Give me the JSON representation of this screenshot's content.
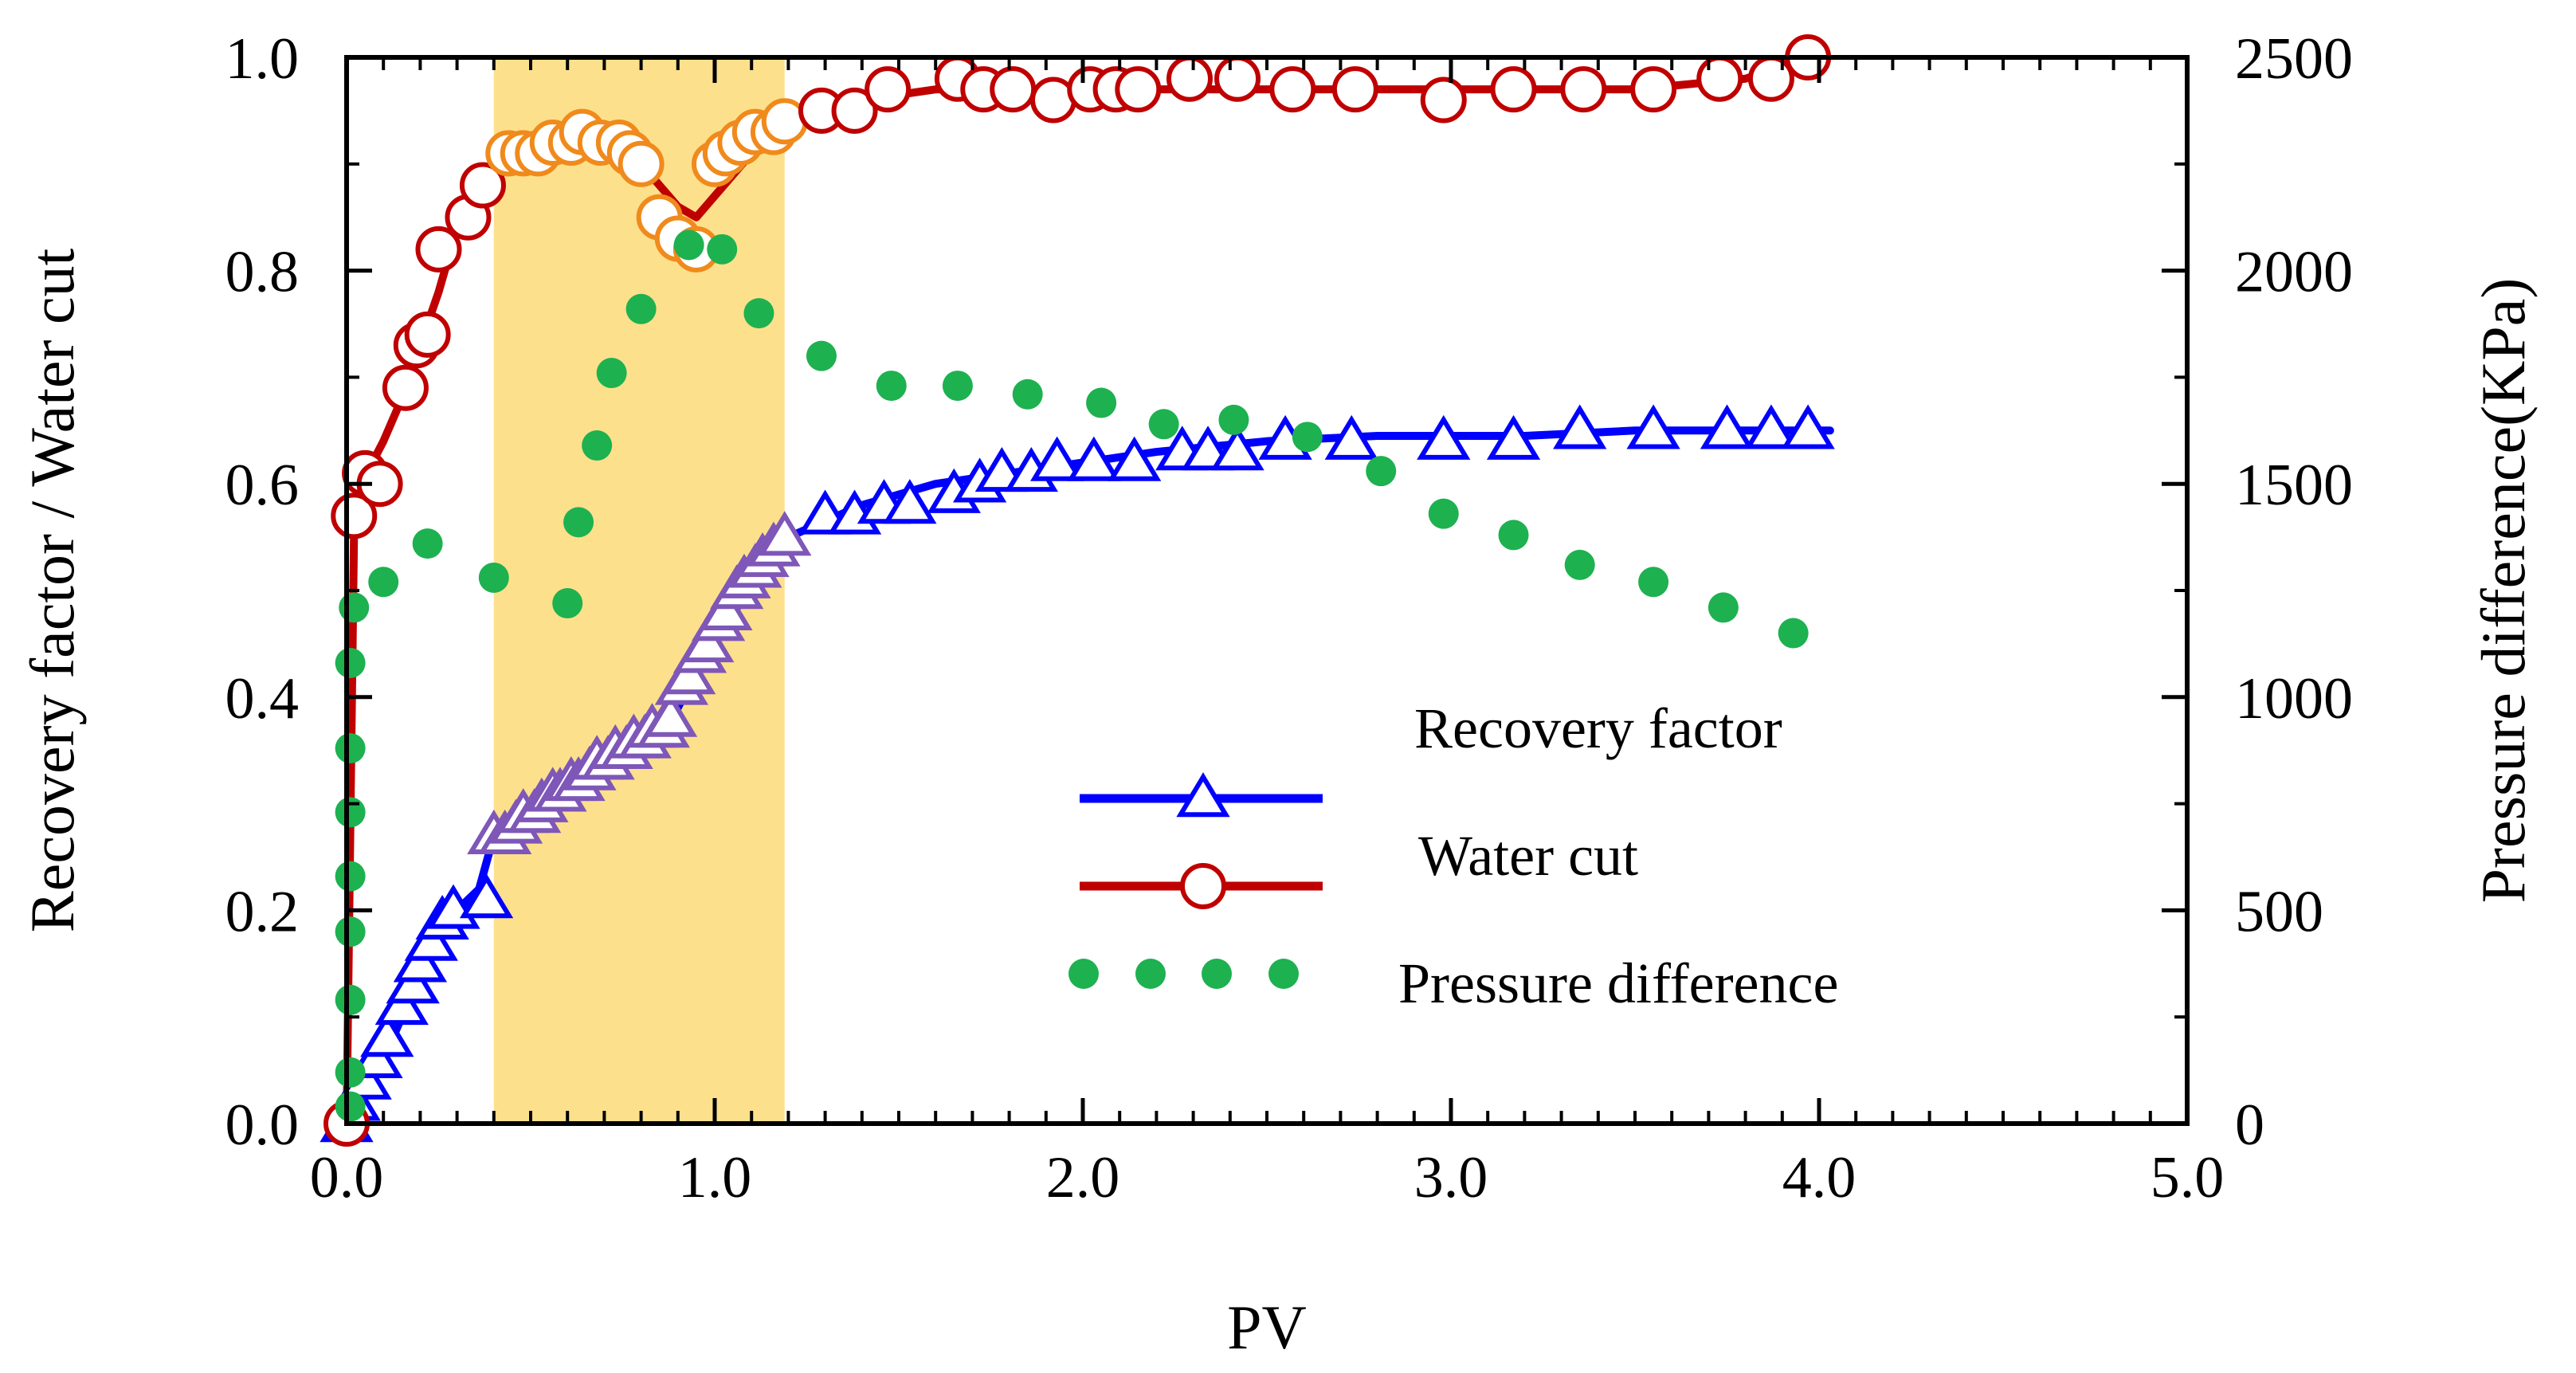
{
  "chart_data": {
    "type": "scatter",
    "title": "",
    "xlabel": "PV",
    "ylabel_left": "Recovery factor / Water cut",
    "ylabel_right": "Pressure difference(KPa)",
    "xlim": [
      0,
      5
    ],
    "ylim_left": [
      0,
      1
    ],
    "ylim_right": [
      0,
      2500
    ],
    "grid": false,
    "legend_position": "center-right",
    "x_ticks": [
      "0.0",
      "1.0",
      "2.0",
      "3.0",
      "4.0",
      "5.0"
    ],
    "y_left_ticks": [
      "0.0",
      "0.2",
      "0.4",
      "0.6",
      "0.8",
      "1.0"
    ],
    "y_right_ticks": [
      "0",
      "500",
      "1000",
      "1500",
      "2000",
      "2500"
    ],
    "highlight_band": {
      "x_range": [
        0.4,
        1.19
      ],
      "color": "#FDE08C"
    },
    "colors": {
      "recovery": "#0000FF",
      "water_cut": "#C00000",
      "pressure": "#1DB150",
      "highlight_recovery": "#7E57B8",
      "highlight_water_cut": "#F08A1C"
    },
    "series": [
      {
        "name": "Recovery factor",
        "axis": "left",
        "marker": "triangle",
        "line": true,
        "x": [
          0.0,
          0.02,
          0.05,
          0.08,
          0.11,
          0.15,
          0.18,
          0.2,
          0.23,
          0.26,
          0.29,
          0.38,
          0.4,
          0.43,
          0.46,
          0.48,
          0.51,
          0.53,
          0.56,
          0.58,
          0.61,
          0.63,
          0.66,
          0.68,
          0.71,
          0.73,
          0.76,
          0.78,
          0.81,
          0.83,
          0.86,
          0.88,
          0.91,
          0.93,
          0.96,
          0.98,
          1.01,
          1.03,
          1.06,
          1.08,
          1.11,
          1.13,
          1.16,
          1.19,
          1.3,
          1.38,
          1.46,
          1.53,
          1.65,
          1.72,
          1.78,
          1.86,
          1.93,
          2.03,
          2.14,
          2.27,
          2.34,
          2.42,
          2.55,
          2.73,
          2.98,
          3.17,
          3.35,
          3.55,
          3.75,
          3.87,
          3.97
        ],
        "values": [
          0.0,
          0.02,
          0.04,
          0.06,
          0.08,
          0.11,
          0.13,
          0.15,
          0.17,
          0.19,
          0.2,
          0.21,
          0.27,
          0.27,
          0.28,
          0.29,
          0.29,
          0.3,
          0.31,
          0.31,
          0.32,
          0.32,
          0.33,
          0.34,
          0.34,
          0.35,
          0.35,
          0.36,
          0.36,
          0.37,
          0.37,
          0.38,
          0.41,
          0.42,
          0.44,
          0.45,
          0.47,
          0.48,
          0.5,
          0.51,
          0.52,
          0.53,
          0.54,
          0.55,
          0.57,
          0.57,
          0.58,
          0.58,
          0.59,
          0.6,
          0.61,
          0.61,
          0.62,
          0.62,
          0.62,
          0.63,
          0.63,
          0.63,
          0.64,
          0.64,
          0.64,
          0.64,
          0.65,
          0.65,
          0.65,
          0.65,
          0.65
        ],
        "line_x": [
          0.0,
          0.05,
          0.1,
          0.15,
          0.2,
          0.25,
          0.3,
          0.36,
          0.4,
          0.5,
          0.6,
          0.7,
          0.8,
          0.9,
          1.0,
          1.1,
          1.2,
          1.4,
          1.6,
          1.8,
          2.0,
          2.2,
          2.5,
          2.8,
          3.0,
          3.2,
          3.5,
          3.8,
          4.03
        ],
        "line_values": [
          0.0,
          0.03,
          0.06,
          0.1,
          0.14,
          0.17,
          0.2,
          0.22,
          0.27,
          0.29,
          0.31,
          0.34,
          0.36,
          0.39,
          0.46,
          0.5,
          0.55,
          0.58,
          0.6,
          0.61,
          0.62,
          0.63,
          0.64,
          0.645,
          0.645,
          0.645,
          0.65,
          0.65,
          0.65
        ]
      },
      {
        "name": "Water cut",
        "axis": "left",
        "marker": "circle",
        "line": true,
        "x": [
          0.0,
          0.02,
          0.05,
          0.09,
          0.16,
          0.19,
          0.22,
          0.25,
          0.33,
          0.37,
          0.44,
          0.48,
          0.52,
          0.56,
          0.61,
          0.64,
          0.69,
          0.74,
          0.77,
          0.8,
          0.85,
          0.9,
          0.95,
          1.0,
          1.03,
          1.07,
          1.11,
          1.16,
          1.19,
          1.29,
          1.38,
          1.47,
          1.66,
          1.73,
          1.81,
          1.92,
          2.02,
          2.09,
          2.15,
          2.29,
          2.42,
          2.57,
          2.74,
          2.98,
          3.17,
          3.36,
          3.55,
          3.73,
          3.87,
          3.97
        ],
        "values": [
          0.0,
          0.57,
          0.61,
          0.6,
          0.69,
          0.73,
          0.74,
          0.82,
          0.85,
          0.88,
          0.91,
          0.91,
          0.91,
          0.92,
          0.92,
          0.93,
          0.92,
          0.92,
          0.91,
          0.9,
          0.85,
          0.83,
          0.82,
          0.9,
          0.91,
          0.92,
          0.93,
          0.93,
          0.94,
          0.95,
          0.95,
          0.97,
          0.98,
          0.97,
          0.97,
          0.96,
          0.97,
          0.97,
          0.97,
          0.98,
          0.98,
          0.97,
          0.97,
          0.96,
          0.97,
          0.97,
          0.97,
          0.98,
          0.98,
          1.0
        ],
        "line_x": [
          0.0,
          0.02,
          0.04,
          0.07,
          0.1,
          0.15,
          0.2,
          0.25,
          0.3,
          0.4,
          0.5,
          0.6,
          0.7,
          0.8,
          0.9,
          0.95,
          1.0,
          1.1,
          1.2,
          1.4,
          1.6,
          1.8,
          2.0,
          2.3,
          2.6,
          2.9,
          3.2,
          3.5,
          3.8,
          3.98
        ],
        "line_values": [
          0.0,
          0.55,
          0.59,
          0.62,
          0.64,
          0.68,
          0.73,
          0.78,
          0.84,
          0.89,
          0.91,
          0.92,
          0.92,
          0.9,
          0.86,
          0.85,
          0.87,
          0.91,
          0.94,
          0.96,
          0.97,
          0.97,
          0.97,
          0.97,
          0.97,
          0.97,
          0.97,
          0.97,
          0.98,
          1.0
        ]
      },
      {
        "name": "Pressure difference",
        "axis": "right",
        "marker": "dot",
        "line": false,
        "x": [
          0.01,
          0.01,
          0.01,
          0.01,
          0.01,
          0.01,
          0.01,
          0.01,
          0.02,
          0.1,
          0.22,
          0.4,
          0.6,
          0.63,
          0.68,
          0.72,
          0.8,
          0.93,
          1.02,
          1.12,
          1.29,
          1.48,
          1.66,
          1.85,
          2.05,
          2.22,
          2.41,
          2.61,
          2.81,
          2.98,
          3.17,
          3.35,
          3.55,
          3.74,
          3.93
        ],
        "values": [
          40,
          120,
          290,
          450,
          580,
          730,
          880,
          1080,
          1210,
          1270,
          1360,
          1280,
          1220,
          1410,
          1590,
          1760,
          1910,
          2060,
          2050,
          1900,
          1800,
          1730,
          1730,
          1710,
          1690,
          1640,
          1650,
          1610,
          1530,
          1430,
          1380,
          1310,
          1270,
          1210,
          1150
        ]
      }
    ]
  }
}
